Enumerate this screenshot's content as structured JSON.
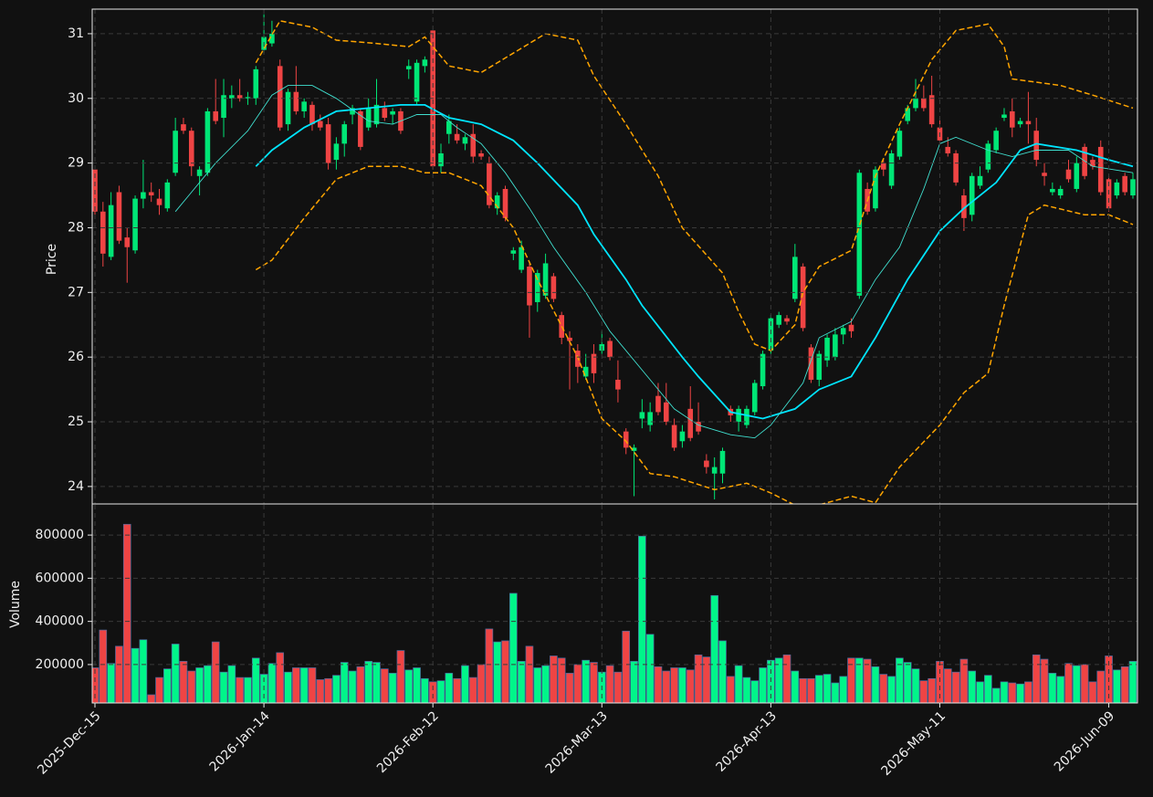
{
  "chart_data": {
    "type": "candlestick",
    "categories": [
      "2025-Dec-15",
      null,
      null,
      null,
      null,
      null,
      null,
      null,
      null,
      null,
      null,
      null,
      null,
      null,
      null,
      null,
      null,
      null,
      null,
      null,
      null,
      "2026-Jan-14",
      null,
      null,
      null,
      null,
      null,
      null,
      null,
      null,
      null,
      null,
      null,
      null,
      null,
      null,
      null,
      null,
      null,
      null,
      null,
      null,
      "2026-Feb-12",
      null,
      null,
      null,
      null,
      null,
      null,
      null,
      null,
      null,
      null,
      null,
      null,
      null,
      null,
      null,
      null,
      null,
      null,
      null,
      null,
      "2026-Mar-13",
      null,
      null,
      null,
      null,
      null,
      null,
      null,
      null,
      null,
      null,
      null,
      null,
      null,
      null,
      null,
      null,
      null,
      null,
      null,
      null,
      "2026-Apr-13",
      null,
      null,
      null,
      null,
      null,
      null,
      null,
      null,
      null,
      null,
      null,
      null,
      null,
      null,
      null,
      null,
      null,
      null,
      null,
      null,
      "2026-May-11",
      null,
      null,
      null,
      null,
      null,
      null,
      null,
      null,
      null,
      null,
      null,
      null,
      null,
      null,
      null,
      null,
      null,
      null,
      null,
      null,
      "2026-Jun-09",
      null,
      null,
      null
    ],
    "candles": [
      [
        28.9,
        28.92,
        28.2,
        28.25
      ],
      [
        28.25,
        28.4,
        27.4,
        27.6
      ],
      [
        27.55,
        28.55,
        27.5,
        28.35
      ],
      [
        28.55,
        28.65,
        27.75,
        27.8
      ],
      [
        27.85,
        28.0,
        27.15,
        27.7
      ],
      [
        27.65,
        28.5,
        27.6,
        28.45
      ],
      [
        28.45,
        29.05,
        28.3,
        28.55
      ],
      [
        28.55,
        28.7,
        28.4,
        28.5
      ],
      [
        28.45,
        28.6,
        28.2,
        28.35
      ],
      [
        28.3,
        28.75,
        28.25,
        28.7
      ],
      [
        28.85,
        29.7,
        28.8,
        29.5
      ],
      [
        29.6,
        29.7,
        29.45,
        29.5
      ],
      [
        29.5,
        29.55,
        28.8,
        28.95
      ],
      [
        28.8,
        28.95,
        28.5,
        28.9
      ],
      [
        28.85,
        29.85,
        28.8,
        29.8
      ],
      [
        29.8,
        30.3,
        29.6,
        29.65
      ],
      [
        29.7,
        30.3,
        29.4,
        30.05
      ],
      [
        30.0,
        30.2,
        29.85,
        30.05
      ],
      [
        30.05,
        30.3,
        29.95,
        30.0
      ],
      [
        30.0,
        30.1,
        29.9,
        30.02
      ],
      [
        30.0,
        30.5,
        29.9,
        30.45
      ],
      [
        30.75,
        31.3,
        30.7,
        30.95
      ],
      [
        30.85,
        31.2,
        30.8,
        31.0
      ],
      [
        30.5,
        30.6,
        29.5,
        29.55
      ],
      [
        29.6,
        30.15,
        29.5,
        30.1
      ],
      [
        30.1,
        30.5,
        29.75,
        29.8
      ],
      [
        29.8,
        30.0,
        29.7,
        29.95
      ],
      [
        29.9,
        29.95,
        29.5,
        29.6
      ],
      [
        29.65,
        29.75,
        29.5,
        29.55
      ],
      [
        29.6,
        29.7,
        28.9,
        29.0
      ],
      [
        29.05,
        29.4,
        28.9,
        29.3
      ],
      [
        29.3,
        29.65,
        29.1,
        29.6
      ],
      [
        29.75,
        29.9,
        29.6,
        29.85
      ],
      [
        29.8,
        29.85,
        29.2,
        29.25
      ],
      [
        29.55,
        30.0,
        29.5,
        29.85
      ],
      [
        29.6,
        30.3,
        29.55,
        29.9
      ],
      [
        29.85,
        29.95,
        29.65,
        29.7
      ],
      [
        29.75,
        29.85,
        29.6,
        29.8
      ],
      [
        29.8,
        29.85,
        29.45,
        29.5
      ],
      [
        30.45,
        30.6,
        30.3,
        30.5
      ],
      [
        29.95,
        30.6,
        29.9,
        30.55
      ],
      [
        30.5,
        30.65,
        30.4,
        30.6
      ],
      [
        31.05,
        31.05,
        28.9,
        28.95
      ],
      [
        28.95,
        29.3,
        28.85,
        29.15
      ],
      [
        29.45,
        29.75,
        29.3,
        29.65
      ],
      [
        29.45,
        29.6,
        29.3,
        29.35
      ],
      [
        29.3,
        29.45,
        29.2,
        29.4
      ],
      [
        29.45,
        29.6,
        29.0,
        29.1
      ],
      [
        29.15,
        29.2,
        29.05,
        29.1
      ],
      [
        29.0,
        29.1,
        28.3,
        28.35
      ],
      [
        28.3,
        28.55,
        28.2,
        28.5
      ],
      [
        28.6,
        28.65,
        28.1,
        28.15
      ],
      [
        27.6,
        27.7,
        27.5,
        27.65
      ],
      [
        27.35,
        27.8,
        27.3,
        27.7
      ],
      [
        27.4,
        27.45,
        26.3,
        26.8
      ],
      [
        26.85,
        27.35,
        26.7,
        27.3
      ],
      [
        26.95,
        27.6,
        26.9,
        27.45
      ],
      [
        27.25,
        27.3,
        26.85,
        26.9
      ],
      [
        26.65,
        26.7,
        26.2,
        26.3
      ],
      [
        26.3,
        26.4,
        25.5,
        26.25
      ],
      [
        26.1,
        26.2,
        25.6,
        25.85
      ],
      [
        25.7,
        26.05,
        25.65,
        25.85
      ],
      [
        26.05,
        26.2,
        25.6,
        25.75
      ],
      [
        26.1,
        26.4,
        26.05,
        26.2
      ],
      [
        26.25,
        26.3,
        25.95,
        26.0
      ],
      [
        25.65,
        25.95,
        25.3,
        25.5
      ],
      [
        24.85,
        24.9,
        24.5,
        24.6
      ],
      [
        24.55,
        24.65,
        23.85,
        24.6
      ],
      [
        25.05,
        25.35,
        24.9,
        25.15
      ],
      [
        24.95,
        25.3,
        24.85,
        25.15
      ],
      [
        25.4,
        25.6,
        25.1,
        25.15
      ],
      [
        25.3,
        25.6,
        24.95,
        25.0
      ],
      [
        24.95,
        25.05,
        24.55,
        24.6
      ],
      [
        24.7,
        24.95,
        24.6,
        24.85
      ],
      [
        25.2,
        25.55,
        24.7,
        24.75
      ],
      [
        25.0,
        25.3,
        24.8,
        24.85
      ],
      [
        24.4,
        24.5,
        24.2,
        24.3
      ],
      [
        24.2,
        24.45,
        23.8,
        24.3
      ],
      [
        24.2,
        24.6,
        24.05,
        24.55
      ],
      [
        25.2,
        25.25,
        25.0,
        25.1
      ],
      [
        25.0,
        25.25,
        24.85,
        25.2
      ],
      [
        24.95,
        25.25,
        24.9,
        25.2
      ],
      [
        25.15,
        25.65,
        25.1,
        25.6
      ],
      [
        25.55,
        26.1,
        25.5,
        26.05
      ],
      [
        26.1,
        26.65,
        26.05,
        26.6
      ],
      [
        26.5,
        26.7,
        26.45,
        26.65
      ],
      [
        26.6,
        26.65,
        26.5,
        26.55
      ],
      [
        26.9,
        27.75,
        26.85,
        27.55
      ],
      [
        27.4,
        27.45,
        26.4,
        26.45
      ],
      [
        26.15,
        26.2,
        25.6,
        25.65
      ],
      [
        25.65,
        26.1,
        25.55,
        26.05
      ],
      [
        25.95,
        26.35,
        25.85,
        26.3
      ],
      [
        26.0,
        26.45,
        25.95,
        26.35
      ],
      [
        26.35,
        26.5,
        26.2,
        26.45
      ],
      [
        26.5,
        26.6,
        26.3,
        26.4
      ],
      [
        26.95,
        28.9,
        26.9,
        28.85
      ],
      [
        28.6,
        28.7,
        28.2,
        28.25
      ],
      [
        28.3,
        28.95,
        28.25,
        28.9
      ],
      [
        29.0,
        29.05,
        28.8,
        28.9
      ],
      [
        28.65,
        29.2,
        28.6,
        29.15
      ],
      [
        29.1,
        29.55,
        29.05,
        29.5
      ],
      [
        29.65,
        29.9,
        29.6,
        29.85
      ],
      [
        29.85,
        30.3,
        29.8,
        30.0
      ],
      [
        30.0,
        30.2,
        29.8,
        29.85
      ],
      [
        30.05,
        30.35,
        29.55,
        29.6
      ],
      [
        29.55,
        29.7,
        29.3,
        29.35
      ],
      [
        29.25,
        29.4,
        29.1,
        29.15
      ],
      [
        29.15,
        29.2,
        28.65,
        28.7
      ],
      [
        28.5,
        28.6,
        27.95,
        28.15
      ],
      [
        28.2,
        28.85,
        28.1,
        28.8
      ],
      [
        28.65,
        28.95,
        28.6,
        28.8
      ],
      [
        28.9,
        29.35,
        28.85,
        29.3
      ],
      [
        29.2,
        29.55,
        29.15,
        29.5
      ],
      [
        29.7,
        29.85,
        29.65,
        29.75
      ],
      [
        29.8,
        30.0,
        29.4,
        29.55
      ],
      [
        29.6,
        29.7,
        29.55,
        29.65
      ],
      [
        29.65,
        30.1,
        29.3,
        29.6
      ],
      [
        29.5,
        29.7,
        28.95,
        29.05
      ],
      [
        28.85,
        29.0,
        28.65,
        28.8
      ],
      [
        28.55,
        28.7,
        28.5,
        28.6
      ],
      [
        28.5,
        28.65,
        28.45,
        28.6
      ],
      [
        28.9,
        29.05,
        28.7,
        28.75
      ],
      [
        28.6,
        29.1,
        28.55,
        29.0
      ],
      [
        29.25,
        29.3,
        28.75,
        28.8
      ],
      [
        29.05,
        29.1,
        28.9,
        28.95
      ],
      [
        29.25,
        29.35,
        28.5,
        28.55
      ],
      [
        28.75,
        28.8,
        28.25,
        28.3
      ],
      [
        28.5,
        28.75,
        28.45,
        28.7
      ],
      [
        28.8,
        28.85,
        28.5,
        28.55
      ],
      [
        28.5,
        28.85,
        28.45,
        28.75
      ]
    ],
    "volume": [
      185000,
      360000,
      205000,
      285000,
      850000,
      275000,
      315000,
      60000,
      140000,
      180000,
      295000,
      215000,
      170000,
      185000,
      195000,
      305000,
      165000,
      195000,
      140000,
      140000,
      230000,
      155000,
      205000,
      255000,
      165000,
      185000,
      185000,
      185000,
      130000,
      135000,
      150000,
      210000,
      170000,
      190000,
      215000,
      210000,
      180000,
      160000,
      265000,
      175000,
      185000,
      135000,
      120000,
      125000,
      160000,
      135000,
      195000,
      140000,
      200000,
      365000,
      305000,
      310000,
      530000,
      215000,
      285000,
      185000,
      195000,
      240000,
      230000,
      160000,
      200000,
      220000,
      210000,
      165000,
      195000,
      165000,
      355000,
      215000,
      795000,
      340000,
      190000,
      170000,
      185000,
      185000,
      175000,
      245000,
      235000,
      520000,
      310000,
      145000,
      195000,
      140000,
      125000,
      185000,
      220000,
      230000,
      245000,
      170000,
      135000,
      135000,
      150000,
      155000,
      115000,
      145000,
      230000,
      230000,
      225000,
      190000,
      155000,
      145000,
      230000,
      210000,
      180000,
      125000,
      135000,
      215000,
      180000,
      165000,
      225000,
      170000,
      120000,
      150000,
      90000,
      120000,
      115000,
      110000,
      120000,
      245000,
      225000,
      160000,
      145000,
      205000,
      195000,
      200000,
      120000,
      170000,
      240000,
      175000,
      190000,
      215000
    ],
    "up_color": "#00e676",
    "down_color": "#ef4444",
    "volume_up_color": "#00f58a",
    "ylabel": "Price",
    "ylim": [
      23.73,
      31.38
    ],
    "yticks": [
      24,
      25,
      26,
      27,
      28,
      29,
      30,
      31
    ],
    "volume_ylabel": "Volume",
    "volume_ylim": [
      22000,
      940000
    ],
    "volume_yticks": [
      200000,
      400000,
      600000,
      800000
    ],
    "grid": true,
    "overlays": [
      {
        "color": "#ffa500",
        "linestyle": "dashed",
        "linewidth": 1.5,
        "x": [
          20,
          23,
          27,
          30,
          35,
          39,
          41,
          44,
          48,
          52,
          56,
          60,
          62,
          66,
          70,
          73,
          78,
          80,
          82,
          84,
          87,
          88,
          90,
          94,
          97,
          100,
          104,
          107,
          111,
          113,
          114,
          120,
          124,
          129
        ],
        "values": [
          30.55,
          31.2,
          31.1,
          30.9,
          30.85,
          30.8,
          30.95,
          30.5,
          30.4,
          30.7,
          31.0,
          30.9,
          30.35,
          29.6,
          28.8,
          28.0,
          27.3,
          26.7,
          26.2,
          26.1,
          26.5,
          27.0,
          27.4,
          27.65,
          28.8,
          29.6,
          30.6,
          31.05,
          31.15,
          30.8,
          30.3,
          30.2,
          30.05,
          29.85
        ]
      },
      {
        "color": "#ffa500",
        "linestyle": "dashed",
        "linewidth": 1.5,
        "x": [
          20,
          22,
          26,
          30,
          34,
          38,
          41,
          44,
          48,
          52,
          55,
          60,
          63,
          66,
          69,
          72,
          77,
          81,
          84,
          88,
          94,
          97,
          100,
          105,
          108,
          111,
          113,
          116,
          118,
          123,
          126,
          129
        ],
        "values": [
          27.35,
          27.5,
          28.15,
          28.75,
          28.95,
          28.95,
          28.85,
          28.85,
          28.65,
          28.0,
          27.2,
          26.0,
          25.05,
          24.7,
          24.2,
          24.15,
          23.95,
          24.05,
          23.9,
          23.65,
          23.85,
          23.75,
          24.3,
          24.95,
          25.45,
          25.75,
          26.8,
          28.2,
          28.35,
          28.2,
          28.2,
          28.05
        ]
      },
      {
        "color": "#00e5ff",
        "linestyle": "solid",
        "linewidth": 1.8,
        "x": [
          20,
          22,
          26,
          30,
          34,
          38,
          41,
          44,
          48,
          52,
          55,
          60,
          62,
          66,
          68,
          73,
          75,
          79,
          83,
          87,
          90,
          94,
          97,
          101,
          105,
          108,
          112,
          115,
          117,
          122,
          126,
          129
        ],
        "values": [
          28.95,
          29.2,
          29.55,
          29.8,
          29.85,
          29.9,
          29.9,
          29.7,
          29.6,
          29.35,
          29.0,
          28.35,
          27.9,
          27.2,
          26.8,
          26.0,
          25.7,
          25.15,
          25.05,
          25.2,
          25.5,
          25.7,
          26.3,
          27.2,
          27.95,
          28.3,
          28.7,
          29.2,
          29.3,
          29.2,
          29.05,
          28.95
        ]
      },
      {
        "color": "#40e0d0",
        "linestyle": "solid",
        "linewidth": 0.9,
        "x": [
          10,
          12,
          15,
          19,
          22,
          24,
          27,
          30,
          34,
          37,
          40,
          43,
          45,
          48,
          51,
          54,
          57,
          61,
          64,
          69,
          72,
          75,
          79,
          82,
          84,
          88,
          90,
          94,
          97,
          100,
          103,
          105,
          107,
          111,
          114,
          117,
          121,
          124,
          129
        ],
        "values": [
          28.25,
          28.55,
          29.0,
          29.5,
          30.05,
          30.2,
          30.2,
          30.0,
          29.65,
          29.6,
          29.75,
          29.75,
          29.55,
          29.3,
          28.85,
          28.3,
          27.7,
          27.0,
          26.4,
          25.65,
          25.2,
          24.95,
          24.8,
          24.75,
          24.95,
          25.6,
          26.3,
          26.55,
          27.2,
          27.7,
          28.6,
          29.3,
          29.4,
          29.2,
          29.1,
          29.2,
          29.2,
          28.95,
          28.85
        ]
      }
    ]
  }
}
